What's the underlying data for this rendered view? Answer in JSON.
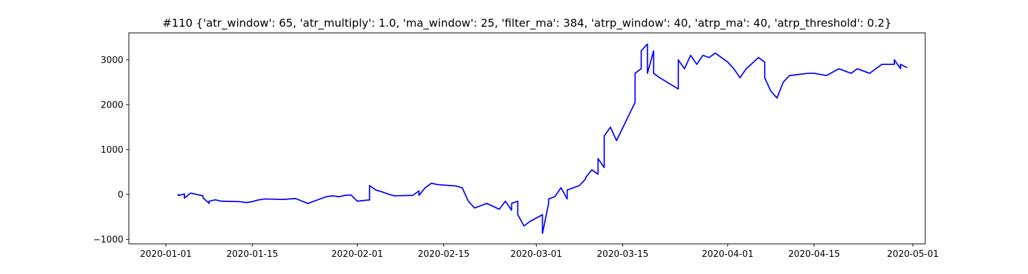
{
  "chart_data": {
    "type": "line",
    "title": "#110 {'atr_window': 65, 'atr_multiply': 1.0, 'ma_window': 25, 'filter_ma': 384, 'atrp_window': 40, 'atrp_ma': 40, 'atrp_threshold': 0.2}",
    "xlabel": "",
    "ylabel": "",
    "xlim": [
      "2019-12-26",
      "2020-05-03"
    ],
    "ylim": [
      -1100,
      3600
    ],
    "grid": false,
    "legend": "none",
    "x_ticks": [
      "2020-01-01",
      "2020-01-15",
      "2020-02-01",
      "2020-02-15",
      "2020-03-01",
      "2020-03-15",
      "2020-04-01",
      "2020-04-15",
      "2020-05-01"
    ],
    "y_ticks": [
      -1000,
      0,
      1000,
      2000,
      3000
    ],
    "y_tick_labels": [
      "−1000",
      "0",
      "1000",
      "2000",
      "3000"
    ],
    "series": [
      {
        "color": "#0000ff",
        "x": [
          "2020-01-03",
          "2020-01-03",
          "2020-01-04",
          "2020-01-04",
          "2020-01-05",
          "2020-01-07",
          "2020-01-07",
          "2020-01-08",
          "2020-01-08",
          "2020-01-09",
          "2020-01-10",
          "2020-01-13",
          "2020-01-14",
          "2020-01-15",
          "2020-01-16",
          "2020-01-17",
          "2020-01-20",
          "2020-01-22",
          "2020-01-24",
          "2020-01-25",
          "2020-01-27",
          "2020-01-28",
          "2020-01-29",
          "2020-01-30",
          "2020-01-31",
          "2020-02-01",
          "2020-02-03",
          "2020-02-03",
          "2020-02-04",
          "2020-02-05",
          "2020-02-06",
          "2020-02-07",
          "2020-02-10",
          "2020-02-11",
          "2020-02-11",
          "2020-02-12",
          "2020-02-13",
          "2020-02-14",
          "2020-02-17",
          "2020-02-18",
          "2020-02-19",
          "2020-02-20",
          "2020-02-21",
          "2020-02-22",
          "2020-02-24",
          "2020-02-25",
          "2020-02-26",
          "2020-02-26",
          "2020-02-27",
          "2020-02-27",
          "2020-02-28",
          "2020-02-29",
          "2020-03-02",
          "2020-03-02",
          "2020-03-03",
          "2020-03-03",
          "2020-03-04",
          "2020-03-05",
          "2020-03-06",
          "2020-03-06",
          "2020-03-08",
          "2020-03-09",
          "2020-03-09",
          "2020-03-10",
          "2020-03-11",
          "2020-03-11",
          "2020-03-12",
          "2020-03-12",
          "2020-03-13",
          "2020-03-14",
          "2020-03-17",
          "2020-03-17",
          "2020-03-18",
          "2020-03-18",
          "2020-03-19",
          "2020-03-19",
          "2020-03-20",
          "2020-03-20",
          "2020-03-20",
          "2020-03-21",
          "2020-03-24",
          "2020-03-24",
          "2020-03-25",
          "2020-03-26",
          "2020-03-27",
          "2020-03-28",
          "2020-03-29",
          "2020-03-30",
          "2020-04-01",
          "2020-04-02",
          "2020-04-03",
          "2020-04-04",
          "2020-04-06",
          "2020-04-07",
          "2020-04-07",
          "2020-04-08",
          "2020-04-09",
          "2020-04-10",
          "2020-04-11",
          "2020-04-14",
          "2020-04-15",
          "2020-04-17",
          "2020-04-19",
          "2020-04-21",
          "2020-04-22",
          "2020-04-24",
          "2020-04-25",
          "2020-04-26",
          "2020-04-28",
          "2020-04-28",
          "2020-04-29",
          "2020-04-29",
          "2020-04-30"
        ],
        "y": [
          0,
          -20,
          10,
          -80,
          30,
          -30,
          -70,
          -200,
          -150,
          -120,
          -150,
          -160,
          -180,
          -160,
          -120,
          -100,
          -110,
          -90,
          -200,
          -150,
          -50,
          -30,
          -50,
          -20,
          -10,
          -150,
          -120,
          200,
          100,
          60,
          10,
          -30,
          -20,
          80,
          -20,
          150,
          250,
          220,
          190,
          150,
          -150,
          -300,
          -250,
          -200,
          -330,
          -150,
          -350,
          -200,
          -150,
          -450,
          -700,
          -600,
          -450,
          -870,
          -200,
          -100,
          -50,
          150,
          -100,
          100,
          200,
          350,
          380,
          550,
          450,
          800,
          600,
          1300,
          1500,
          1200,
          2050,
          2700,
          2800,
          3200,
          3350,
          2700,
          3200,
          2900,
          2700,
          2600,
          2350,
          3000,
          2800,
          3100,
          2900,
          3100,
          3050,
          3150,
          2950,
          2800,
          2600,
          2800,
          3050,
          2950,
          2600,
          2300,
          2150,
          2500,
          2650,
          2700,
          2700,
          2650,
          2800,
          2700,
          2800,
          2700,
          2800,
          2900,
          2900,
          3000,
          2800,
          2900,
          2830
        ]
      }
    ]
  }
}
